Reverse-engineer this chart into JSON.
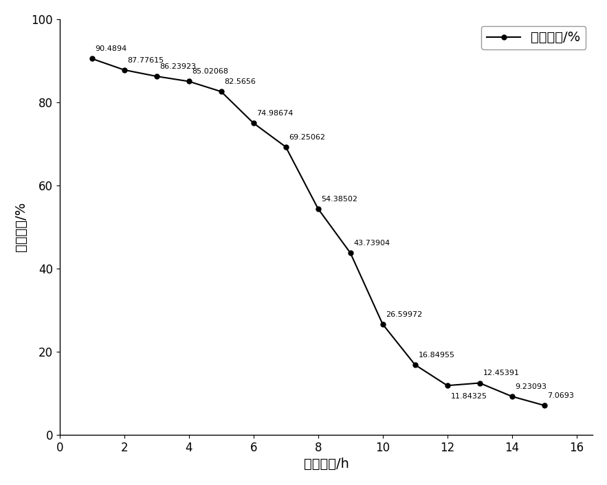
{
  "x": [
    1,
    2,
    3,
    4,
    5,
    6,
    7,
    8,
    9,
    10,
    11,
    12,
    13,
    14,
    15
  ],
  "y": [
    90.4894,
    87.77615,
    86.23923,
    85.02068,
    82.5656,
    74.98674,
    69.25062,
    54.38502,
    43.73904,
    26.59972,
    16.84955,
    11.84325,
    12.45391,
    9.23093,
    7.0693
  ],
  "labels": [
    "90.4894",
    "87.77615",
    "86.23923",
    "85.02068",
    "82.5656",
    "74.98674",
    "69.25062",
    "54.38502",
    "43.73904",
    "26.59972",
    "16.84955",
    "11.84325",
    "12.45391",
    "9.23093",
    "7.0693"
  ],
  "label_offsets_x": [
    0.1,
    0.1,
    0.1,
    0.1,
    0.1,
    0.1,
    0.1,
    0.1,
    0.1,
    0.1,
    0.1,
    0.1,
    0.1,
    0.1,
    0.1
  ],
  "label_offsets_y": [
    1.5,
    1.5,
    1.5,
    1.5,
    1.5,
    1.5,
    1.5,
    1.5,
    1.5,
    1.5,
    1.5,
    -3.5,
    1.5,
    1.5,
    1.5
  ],
  "line_color": "#000000",
  "marker_color": "#000000",
  "marker_style": "o",
  "marker_size": 5,
  "line_width": 1.5,
  "xlabel": "干燥时间/h",
  "ylabel": "水分含量/%",
  "legend_label": "水分含量/%",
  "xlim": [
    0,
    16.5
  ],
  "ylim": [
    0,
    100
  ],
  "xticks": [
    0,
    2,
    4,
    6,
    8,
    10,
    12,
    14,
    16
  ],
  "yticks": [
    0,
    20,
    40,
    60,
    80,
    100
  ],
  "font_size_label": 14,
  "font_size_tick": 12,
  "font_size_annotation": 8,
  "background_color": "#ffffff"
}
